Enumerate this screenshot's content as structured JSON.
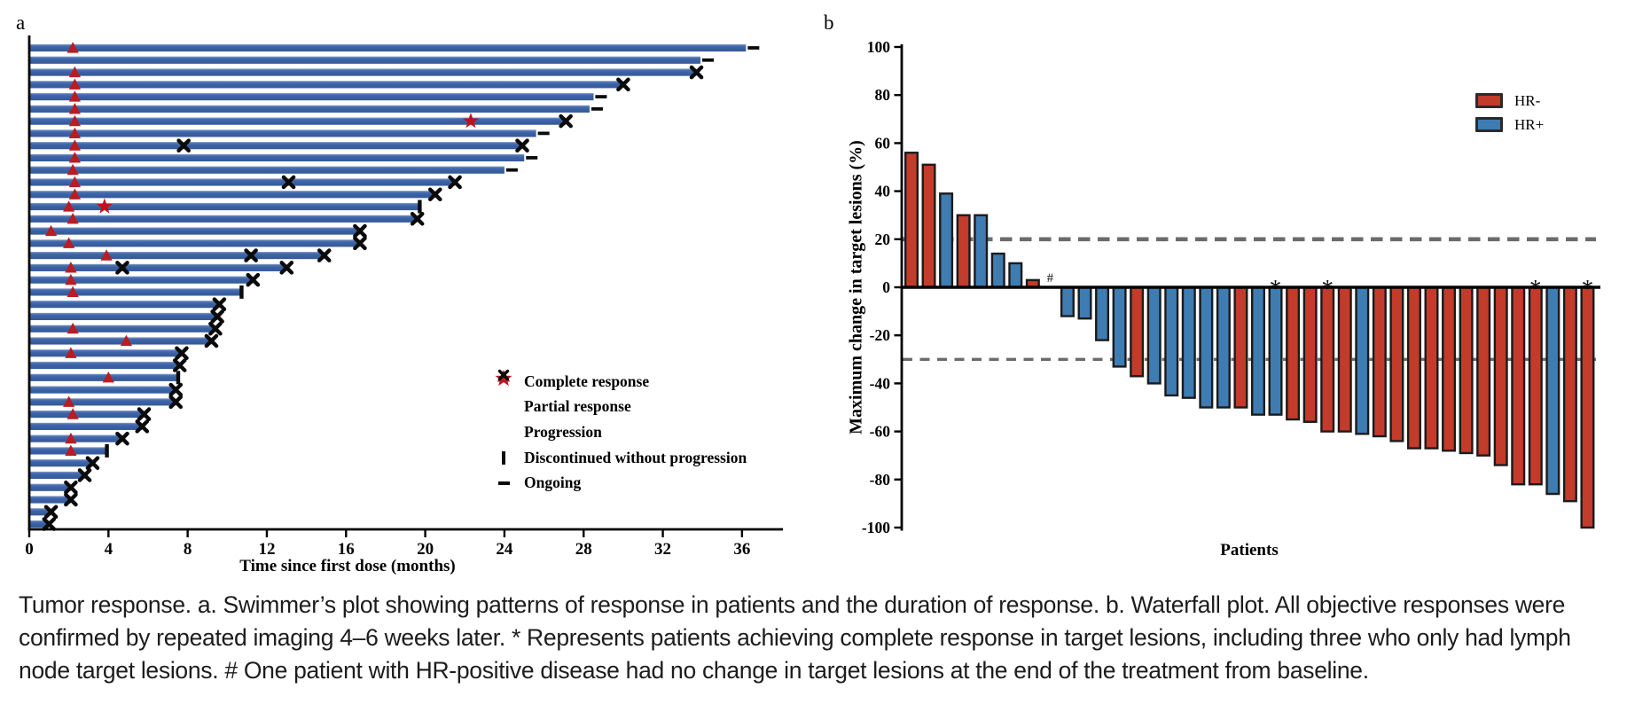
{
  "chart_data": [
    {
      "id": "swimmer-plot",
      "type": "bar",
      "orientation": "horizontal",
      "panel_label": "a",
      "xlabel": "Time since first dose (months)",
      "x_ticks": [
        0,
        4,
        8,
        12,
        16,
        20,
        24,
        28,
        32,
        36
      ],
      "xlim": [
        0,
        38
      ],
      "unit": "months",
      "legend": [
        {
          "marker": "complete-response-star",
          "label": "Complete response"
        },
        {
          "marker": "partial-response-triangle",
          "label": "Partial response"
        },
        {
          "marker": "progression-x",
          "label": "Progression"
        },
        {
          "marker": "discontinued-tick",
          "label": "Discontinued without progression"
        },
        {
          "marker": "ongoing-dash",
          "label": "Ongoing"
        }
      ],
      "bars": [
        {
          "m": 36.2,
          "end": "ongoing",
          "pr": 2.2
        },
        {
          "m": 33.9,
          "end": "ongoing"
        },
        {
          "m": 33.7,
          "end": "pd",
          "pr": 2.3
        },
        {
          "m": 30.0,
          "end": "pd",
          "pr": 2.3
        },
        {
          "m": 28.5,
          "end": "ongoing",
          "pr": 2.3
        },
        {
          "m": 28.3,
          "end": "ongoing",
          "pr": 2.3
        },
        {
          "m": 27.1,
          "end": "pd",
          "pr": 2.3,
          "cr": 22.3
        },
        {
          "m": 25.6,
          "end": "ongoing",
          "pr": 2.3
        },
        {
          "m": 24.9,
          "end": "pd",
          "pr": 2.3,
          "pd_marks": [
            7.8
          ]
        },
        {
          "m": 25.0,
          "end": "ongoing",
          "pr": 2.3
        },
        {
          "m": 24.0,
          "end": "ongoing",
          "pr": 2.2
        },
        {
          "m": 21.5,
          "end": "pd",
          "pr": 2.3,
          "pd_marks": [
            13.1
          ]
        },
        {
          "m": 20.5,
          "end": "pd",
          "pr": 2.3
        },
        {
          "m": 19.7,
          "end": "discontinued",
          "pr": 2.0,
          "cr": 3.8
        },
        {
          "m": 19.6,
          "end": "pd",
          "pr": 2.2
        },
        {
          "m": 16.7,
          "end": "pd",
          "pr": 1.1
        },
        {
          "m": 16.7,
          "end": "pd",
          "pr": 2.0
        },
        {
          "m": 14.9,
          "end": "pd",
          "pr": 3.9,
          "pd_marks": [
            11.2
          ]
        },
        {
          "m": 13.0,
          "end": "pd",
          "pr": 2.1,
          "pd_marks": [
            4.7
          ]
        },
        {
          "m": 11.3,
          "end": "pd",
          "pr": 2.1
        },
        {
          "m": 10.7,
          "end": "discontinued",
          "pr": 2.2
        },
        {
          "m": 9.6,
          "end": "pd"
        },
        {
          "m": 9.5,
          "end": "pd"
        },
        {
          "m": 9.4,
          "end": "pd",
          "pr": 2.2
        },
        {
          "m": 9.2,
          "end": "pd",
          "pr": 4.9
        },
        {
          "m": 7.7,
          "end": "pd",
          "pr": 2.1
        },
        {
          "m": 7.6,
          "end": "pd"
        },
        {
          "m": 7.5,
          "end": "discontinued",
          "pr": 4.0
        },
        {
          "m": 7.4,
          "end": "pd"
        },
        {
          "m": 7.4,
          "end": "pd",
          "pr": 2.0
        },
        {
          "m": 5.8,
          "end": "pd",
          "pr": 2.2
        },
        {
          "m": 5.7,
          "end": "pd"
        },
        {
          "m": 4.7,
          "end": "pd",
          "pr": 2.1
        },
        {
          "m": 3.9,
          "end": "discontinued",
          "pr": 2.1
        },
        {
          "m": 3.2,
          "end": "pd"
        },
        {
          "m": 2.8,
          "end": "pd"
        },
        {
          "m": 2.1,
          "end": "pd"
        },
        {
          "m": 2.1,
          "end": "pd"
        },
        {
          "m": 1.1,
          "end": "pd"
        },
        {
          "m": 1.0,
          "end": "pd"
        }
      ]
    },
    {
      "id": "waterfall-plot",
      "type": "bar",
      "panel_label": "b",
      "ylabel": "Maximum change in target lesions (%)",
      "xlabel": "Patients",
      "y_ticks": [
        100,
        80,
        60,
        40,
        20,
        0,
        -20,
        -40,
        -60,
        -80,
        -100
      ],
      "ylim": [
        -100,
        100
      ],
      "reference_lines": [
        20,
        -30
      ],
      "legend": [
        {
          "label": "HR-",
          "color": "#c23b2b"
        },
        {
          "label": "HR+",
          "color": "#3e7cb2"
        }
      ],
      "patients": [
        {
          "value": 56,
          "hr": "HR-"
        },
        {
          "value": 51,
          "hr": "HR-"
        },
        {
          "value": 39,
          "hr": "HR+"
        },
        {
          "value": 30,
          "hr": "HR-"
        },
        {
          "value": 30,
          "hr": "HR+"
        },
        {
          "value": 14,
          "hr": "HR+"
        },
        {
          "value": 10,
          "hr": "HR+"
        },
        {
          "value": 3,
          "hr": "HR-"
        },
        {
          "value": 0,
          "hr": "HR+",
          "note": "#"
        },
        {
          "value": -12,
          "hr": "HR+"
        },
        {
          "value": -13,
          "hr": "HR+"
        },
        {
          "value": -22,
          "hr": "HR+"
        },
        {
          "value": -33,
          "hr": "HR+"
        },
        {
          "value": -37,
          "hr": "HR-"
        },
        {
          "value": -40,
          "hr": "HR+"
        },
        {
          "value": -45,
          "hr": "HR+"
        },
        {
          "value": -46,
          "hr": "HR+"
        },
        {
          "value": -50,
          "hr": "HR+"
        },
        {
          "value": -50,
          "hr": "HR+"
        },
        {
          "value": -50,
          "hr": "HR-"
        },
        {
          "value": -53,
          "hr": "HR+"
        },
        {
          "value": -53,
          "hr": "HR+",
          "note": "*"
        },
        {
          "value": -55,
          "hr": "HR-"
        },
        {
          "value": -56,
          "hr": "HR-"
        },
        {
          "value": -60,
          "hr": "HR-",
          "note": "*"
        },
        {
          "value": -60,
          "hr": "HR-"
        },
        {
          "value": -61,
          "hr": "HR+"
        },
        {
          "value": -62,
          "hr": "HR-"
        },
        {
          "value": -64,
          "hr": "HR-"
        },
        {
          "value": -67,
          "hr": "HR-"
        },
        {
          "value": -67,
          "hr": "HR-"
        },
        {
          "value": -68,
          "hr": "HR-"
        },
        {
          "value": -69,
          "hr": "HR-"
        },
        {
          "value": -70,
          "hr": "HR-"
        },
        {
          "value": -74,
          "hr": "HR-"
        },
        {
          "value": -82,
          "hr": "HR-"
        },
        {
          "value": -82,
          "hr": "HR-",
          "note": "*"
        },
        {
          "value": -86,
          "hr": "HR+"
        },
        {
          "value": -89,
          "hr": "HR-"
        },
        {
          "value": -100,
          "hr": "HR-",
          "note": "*"
        }
      ]
    }
  ],
  "colors": {
    "swimmer_bar": "#3b61a5",
    "swimmer_bar_light": "#8aa3d0",
    "swimmer_bar_dark": "#365a97",
    "response_red": "#b91c22",
    "marker_black": "#0b0b0b",
    "hr_negative_red": "#c23b2b",
    "hr_positive_blue": "#3e7cb2",
    "bar_outline": "#1b1b1b",
    "dashed_gray": "#6b6b6b"
  },
  "caption": {
    "lines": [
      "Tumor response. a. Swimmer’s plot showing patterns of response in patients and the duration of response. b. Waterfall plot. All objective responses were",
      "confirmed by repeated imaging 4–6 weeks later. * Represents patients achieving complete response in target lesions, including three who only had lymph",
      "node target lesions. # One patient with HR-positive disease had no change in target lesions at the end of the treatment from baseline."
    ]
  }
}
